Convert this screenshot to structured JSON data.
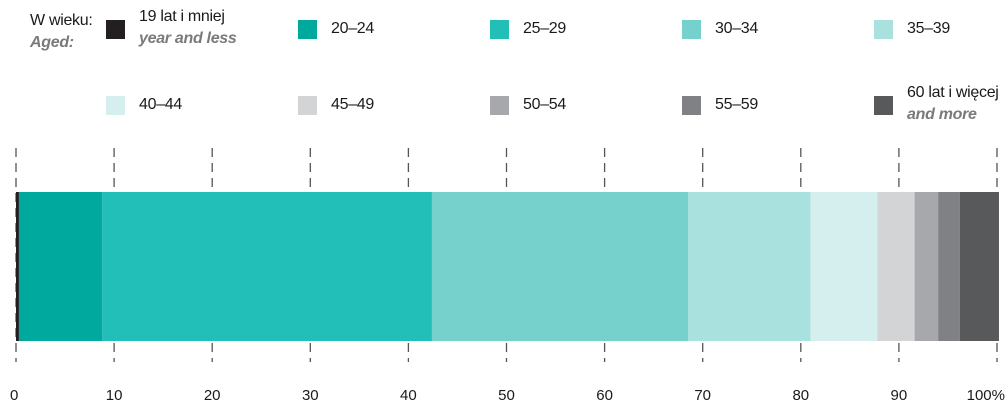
{
  "chart_data": {
    "type": "bar",
    "orientation": "horizontal",
    "stacked": true,
    "legend_title": {
      "pl": "W wieku:",
      "en": "Aged:"
    },
    "series": [
      {
        "name": "19 lat i mniej",
        "name_en": "year and less",
        "value": 0.3,
        "color": "#231f20"
      },
      {
        "name": "20–24",
        "value": 8.5,
        "color": "#00a99d"
      },
      {
        "name": "25–29",
        "value": 33.6,
        "color": "#21bfb8"
      },
      {
        "name": "30–34",
        "value": 26.1,
        "color": "#76d1cc"
      },
      {
        "name": "35–39",
        "value": 12.5,
        "color": "#a8e1dd"
      },
      {
        "name": "40–44",
        "value": 6.8,
        "color": "#d5efee"
      },
      {
        "name": "45–49",
        "value": 3.8,
        "color": "#d3d4d6"
      },
      {
        "name": "50–54",
        "value": 2.4,
        "color": "#a7a8ab"
      },
      {
        "name": "55–59",
        "value": 2.2,
        "color": "#808184"
      },
      {
        "name": "60 lat i więcej",
        "name_en": "and more",
        "value": 4.0,
        "color": "#58595b"
      }
    ],
    "x_ticks": [
      "0",
      "10",
      "20",
      "30",
      "40",
      "50",
      "60",
      "70",
      "80",
      "90",
      "100%"
    ],
    "xlim": [
      0,
      100
    ],
    "grid": "vertical dashed"
  }
}
